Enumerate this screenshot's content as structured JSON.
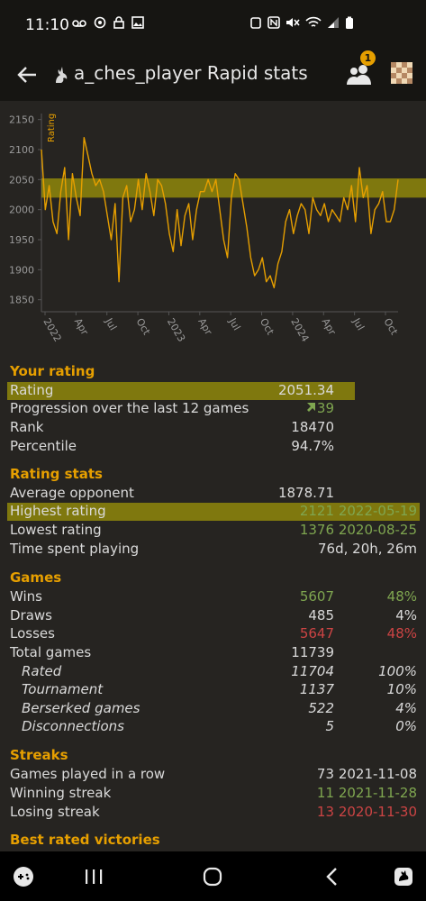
{
  "status_bar": {
    "time": "11:10"
  },
  "app_bar": {
    "title": "a_ches_player Rapid stats",
    "friends_badge": "1"
  },
  "chart_data": {
    "type": "line",
    "ylabel": "Rating",
    "ylim": [
      1830,
      2160
    ],
    "yticks": [
      1850,
      1900,
      1950,
      2000,
      2050,
      2100,
      2150
    ],
    "xticks": [
      "2022",
      "Apr",
      "Jul",
      "Oct",
      "2023",
      "Apr",
      "Jul",
      "Oct",
      "2024",
      "Apr",
      "Jul",
      "Oct"
    ],
    "band": [
      2020,
      2052
    ],
    "series": [
      {
        "values": [
          2100,
          2000,
          2040,
          1980,
          1960,
          2030,
          2070,
          1950,
          2060,
          2020,
          1990,
          2120,
          2090,
          2060,
          2040,
          2050,
          2030,
          1990,
          1950,
          2010,
          1880,
          2020,
          2040,
          1980,
          2000,
          2050,
          2000,
          2060,
          2030,
          1990,
          2050,
          2040,
          2010,
          1960,
          1930,
          2000,
          1940,
          1990,
          2010,
          1950,
          2000,
          2030,
          2030,
          2050,
          2030,
          2050,
          2000,
          1950,
          1920,
          2020,
          2060,
          2050,
          2010,
          1970,
          1920,
          1890,
          1900,
          1920,
          1880,
          1890,
          1870,
          1910,
          1930,
          1980,
          2000,
          1960,
          1990,
          2010,
          2000,
          1960,
          2020,
          2000,
          1990,
          2010,
          1980,
          2000,
          1990,
          1980,
          2020,
          2000,
          2040,
          1980,
          2070,
          2020,
          2040,
          1960,
          2000,
          2010,
          2030,
          1980,
          1980,
          2000,
          2050
        ]
      }
    ]
  },
  "your_rating": {
    "heading": "Your rating",
    "rows": [
      {
        "label": "Rating",
        "v1": "2051.34"
      },
      {
        "label": "Progression over the last 12 games",
        "v1": "39"
      },
      {
        "label": "Rank",
        "v1": "18470"
      },
      {
        "label": "Percentile",
        "v1": "94.7%"
      }
    ]
  },
  "rating_stats": {
    "heading": "Rating stats",
    "rows": [
      {
        "label": "Average opponent",
        "v1": "1878.71",
        "v2": ""
      },
      {
        "label": "Highest rating",
        "v1": "2121",
        "v2": "2022-05-19"
      },
      {
        "label": "Lowest rating",
        "v1": "1376",
        "v2": "2020-08-25"
      },
      {
        "label": "Time spent playing",
        "v1": "",
        "v2": "76d, 20h, 26m"
      }
    ]
  },
  "games": {
    "heading": "Games",
    "rows": [
      {
        "label": "Wins",
        "v1": "5607",
        "v2": "48%"
      },
      {
        "label": "Draws",
        "v1": "485",
        "v2": "4%"
      },
      {
        "label": "Losses",
        "v1": "5647",
        "v2": "48%"
      },
      {
        "label": "Total games",
        "v1": "11739",
        "v2": ""
      },
      {
        "label": "Rated",
        "v1": "11704",
        "v2": "100%"
      },
      {
        "label": "Tournament",
        "v1": "1137",
        "v2": "10%"
      },
      {
        "label": "Berserked games",
        "v1": "522",
        "v2": "4%"
      },
      {
        "label": "Disconnections",
        "v1": "5",
        "v2": "0%"
      }
    ]
  },
  "streaks": {
    "heading": "Streaks",
    "rows": [
      {
        "label": "Games played in a row",
        "v1": "73",
        "v2": "2021-11-08"
      },
      {
        "label": "Winning streak",
        "v1": "11",
        "v2": "2021-11-28"
      },
      {
        "label": "Losing streak",
        "v1": "13",
        "v2": "2020-11-30"
      }
    ]
  },
  "best_victories": {
    "heading": "Best rated victories"
  },
  "colors": {
    "accent": "#e69f00",
    "positive": "#7fa650",
    "negative": "#cc4444",
    "highlight": "#c8be00"
  }
}
